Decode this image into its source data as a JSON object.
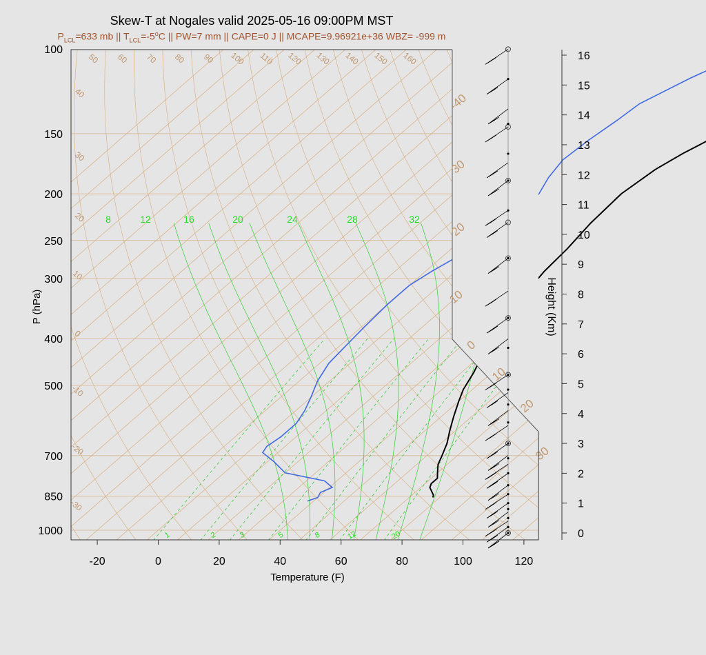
{
  "title": "Skew-T at Nogales valid 2025-05-16 09:00PM MST",
  "subtitle": {
    "p_lcl_prefix": "P",
    "p_lcl_sub": "LCL",
    "p_lcl_value": "=633 mb || T",
    "t_lcl_sub": "LCL",
    "t_lcl_value": "=-5",
    "deg": "o",
    "rest": "C || PW=7 mm || CAPE=0 J || MCAPE=9.96921e+36 WBZ= -999 m"
  },
  "chart_data": {
    "type": "line",
    "xlabel": "Temperature (F)",
    "ylabel": "P (hPa)",
    "y2label": "Height (Km)",
    "x_ticks": [
      -20,
      0,
      20,
      40,
      60,
      80,
      100,
      120
    ],
    "p_ticks": [
      100,
      150,
      200,
      250,
      300,
      400,
      500,
      700,
      850,
      1000
    ],
    "height_ticks": [
      0,
      1,
      2,
      3,
      4,
      5,
      6,
      7,
      8,
      9,
      10,
      11,
      12,
      13,
      14,
      15,
      16
    ],
    "isotherm_labels": [
      "50",
      "60",
      "70",
      "80",
      "90",
      "100",
      "110",
      "120",
      "130",
      "140",
      "150",
      "160",
      "40",
      "30",
      "20",
      "10",
      "0",
      "-10",
      "-20",
      "-30",
      "-40",
      "30",
      "20",
      "10",
      "0",
      "10",
      "20",
      "30",
      "40"
    ],
    "mixing_ratio_labels": [
      "1",
      "2",
      "3",
      "5",
      "8",
      "12",
      "20"
    ],
    "wet_bulb_labels": [
      "8",
      "12",
      "16",
      "20",
      "24",
      "28",
      "32"
    ],
    "colors": {
      "temperature": "#000000",
      "dewpoint": "#4169e1",
      "isotherm": "#d8b48a",
      "isotherm_text": "#c09870",
      "mixing_ratio": "#33cc33",
      "mixing_ratio_text": "#22dd22",
      "subtitle": "#a0522d"
    },
    "series": [
      {
        "key": "temperature",
        "points": [
          [
            77.8,
            855
          ],
          [
            77,
            845
          ],
          [
            75,
            830
          ],
          [
            73,
            815
          ],
          [
            72,
            800
          ],
          [
            72,
            780
          ],
          [
            70,
            760
          ],
          [
            67,
            730
          ],
          [
            65,
            700
          ],
          [
            62,
            660
          ],
          [
            58,
            620
          ],
          [
            54,
            580
          ],
          [
            50,
            540
          ],
          [
            47,
            510
          ],
          [
            44,
            470
          ],
          [
            40,
            430
          ],
          [
            36,
            390
          ],
          [
            33,
            350
          ],
          [
            31,
            320
          ],
          [
            29,
            290
          ],
          [
            28,
            260
          ],
          [
            26,
            230
          ],
          [
            25,
            200
          ],
          [
            27,
            178
          ],
          [
            30,
            165
          ],
          [
            35,
            150
          ],
          [
            40,
            133
          ],
          [
            45,
            120
          ],
          [
            50,
            110
          ],
          [
            56,
            100
          ]
        ]
      },
      {
        "key": "dewpoint",
        "points": [
          [
            38,
            870
          ],
          [
            40,
            855
          ],
          [
            39,
            835
          ],
          [
            41,
            815
          ],
          [
            36,
            790
          ],
          [
            20,
            760
          ],
          [
            12,
            720
          ],
          [
            5,
            690
          ],
          [
            4,
            670
          ],
          [
            5,
            640
          ],
          [
            5,
            600
          ],
          [
            3,
            565
          ],
          [
            0,
            530
          ],
          [
            -4,
            490
          ],
          [
            -7,
            450
          ],
          [
            -8,
            415
          ],
          [
            -9,
            380
          ],
          [
            -10,
            340
          ],
          [
            -10,
            310
          ],
          [
            -8,
            290
          ],
          [
            -5,
            270
          ],
          [
            -2,
            250
          ],
          [
            0,
            235
          ],
          [
            -1,
            215
          ],
          [
            -2,
            200
          ],
          [
            -5,
            185
          ],
          [
            -7,
            170
          ],
          [
            -6,
            155
          ],
          [
            -4,
            140
          ],
          [
            -3,
            130
          ],
          [
            4,
            115
          ],
          [
            14,
            100
          ]
        ]
      }
    ],
    "wind_profile_heights_km": [
      16.2,
      15.2,
      14.2,
      13.6,
      12.4,
      11.8,
      10.8,
      10.4,
      9.2,
      8.1,
      7.2,
      6.5,
      5.3,
      4.7,
      4.1,
      3.6,
      3.0,
      2.6,
      2.3,
      2.0,
      1.6,
      1.3,
      1.0,
      0.7,
      0.4,
      0.2,
      0.0
    ],
    "wind_markers_km": [
      15.2,
      13.7,
      12.7,
      11.8,
      10.8,
      9.2,
      7.2,
      6.2,
      5.3,
      4.8,
      4.3,
      3.7,
      3.0,
      2.5,
      2.0,
      1.6,
      1.3,
      1.0,
      0.8,
      0.5,
      0.2,
      0.0
    ]
  }
}
